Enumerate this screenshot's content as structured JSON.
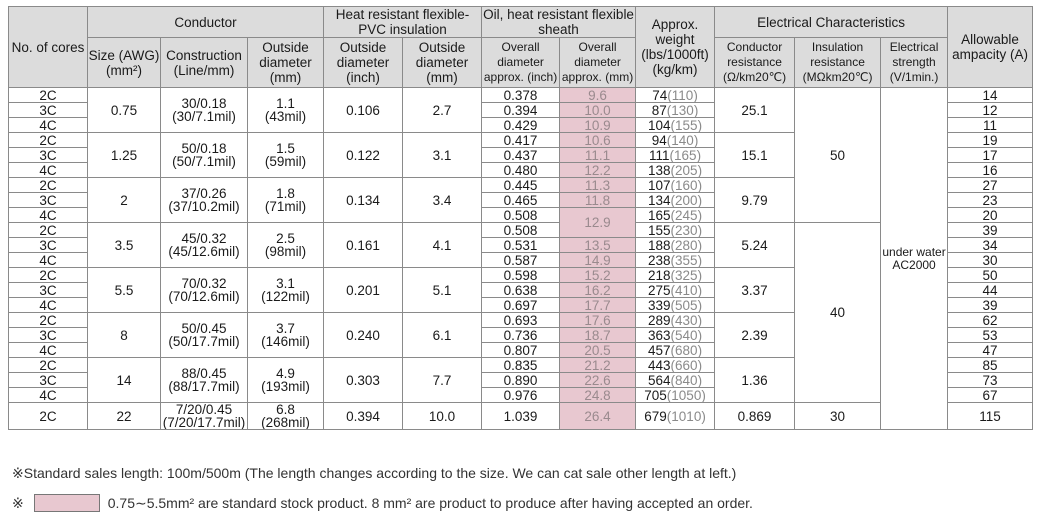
{
  "headers": {
    "cores": "No. of cores",
    "conductor": "Conductor",
    "size": "Size (AWG) (mm²)",
    "construction": "Construction (Line/mm)",
    "outside_diameter": "Outside diameter (mm)",
    "insulation": "Heat resistant flexible-PVC insulation",
    "ins_od_inch": "Outside diameter (inch)",
    "ins_od_mm": "Outside diameter (mm)",
    "sheath": "Oil, heat resistant flexible sheath",
    "sheath_od_inch": "Overall diameter approx. (inch)",
    "sheath_od_mm": "Overall diameter approx. (mm)",
    "weight": "Approx. weight (lbs/1000ft) (kg/km)",
    "electrical": "Electrical Characteristics",
    "cond_res": "Conductor resistance (Ω/km20℃)",
    "ins_res": "Insulation resistance (MΩkm20℃)",
    "elec_strength": "Electrical strength (V/1min.)",
    "ampacity": "Allowable ampacity (A)"
  },
  "groups": [
    {
      "size": "0.75",
      "construction": [
        "30/0.18",
        "(30/7.1mil)"
      ],
      "od": [
        "1.1",
        "(43mil)"
      ],
      "ins_inch": "0.106",
      "ins_mm": "2.7",
      "cond_res": "25.1",
      "rows": [
        {
          "cores": "2C",
          "od_inch": "0.378",
          "od_mm": "9.6",
          "w_lbs": "74",
          "w_kg": "(110)",
          "amp": "14"
        },
        {
          "cores": "3C",
          "od_inch": "0.394",
          "od_mm": "10.0",
          "w_lbs": "87",
          "w_kg": "(130)",
          "amp": "12"
        },
        {
          "cores": "4C",
          "od_inch": "0.429",
          "od_mm": "10.9",
          "w_lbs": "104",
          "w_kg": "(155)",
          "amp": "11"
        }
      ]
    },
    {
      "size": "1.25",
      "construction": [
        "50/0.18",
        "(50/7.1mil)"
      ],
      "od": [
        "1.5",
        "(59mil)"
      ],
      "ins_inch": "0.122",
      "ins_mm": "3.1",
      "cond_res": "15.1",
      "rows": [
        {
          "cores": "2C",
          "od_inch": "0.417",
          "od_mm": "10.6",
          "w_lbs": "94",
          "w_kg": "(140)",
          "amp": "19"
        },
        {
          "cores": "3C",
          "od_inch": "0.437",
          "od_mm": "11.1",
          "w_lbs": "111",
          "w_kg": "(165)",
          "amp": "17"
        },
        {
          "cores": "4C",
          "od_inch": "0.480",
          "od_mm": "12.2",
          "w_lbs": "138",
          "w_kg": "(205)",
          "amp": "16"
        }
      ]
    },
    {
      "size": "2",
      "construction": [
        "37/0.26",
        "(37/10.2mil)"
      ],
      "od": [
        "1.8",
        "(71mil)"
      ],
      "ins_inch": "0.134",
      "ins_mm": "3.4",
      "cond_res": "9.79",
      "rows": [
        {
          "cores": "2C",
          "od_inch": "0.445",
          "od_mm": "11.3",
          "w_lbs": "107",
          "w_kg": "(160)",
          "amp": "27"
        },
        {
          "cores": "3C",
          "od_inch": "0.465",
          "od_mm": "11.8",
          "w_lbs": "134",
          "w_kg": "(200)",
          "amp": "23"
        },
        {
          "cores": "4C",
          "od_inch": "0.508",
          "od_mm": "12.9",
          "w_lbs": "165",
          "w_kg": "(245)",
          "amp": "20"
        }
      ]
    },
    {
      "size": "3.5",
      "construction": [
        "45/0.32",
        "(45/12.6mil)"
      ],
      "od": [
        "2.5",
        "(98mil)"
      ],
      "ins_inch": "0.161",
      "ins_mm": "4.1",
      "cond_res": "5.24",
      "rows": [
        {
          "cores": "2C",
          "od_inch": "0.508",
          "od_mm": "12.9",
          "w_lbs": "155",
          "w_kg": "(230)",
          "amp": "39"
        },
        {
          "cores": "3C",
          "od_inch": "0.531",
          "od_mm": "13.5",
          "w_lbs": "188",
          "w_kg": "(280)",
          "amp": "34"
        },
        {
          "cores": "4C",
          "od_inch": "0.587",
          "od_mm": "14.9",
          "w_lbs": "238",
          "w_kg": "(355)",
          "amp": "30"
        }
      ]
    },
    {
      "size": "5.5",
      "construction": [
        "70/0.32",
        "(70/12.6mil)"
      ],
      "od": [
        "3.1",
        "(122mil)"
      ],
      "ins_inch": "0.201",
      "ins_mm": "5.1",
      "cond_res": "3.37",
      "rows": [
        {
          "cores": "2C",
          "od_inch": "0.598",
          "od_mm": "15.2",
          "w_lbs": "218",
          "w_kg": "(325)",
          "amp": "50"
        },
        {
          "cores": "3C",
          "od_inch": "0.638",
          "od_mm": "16.2",
          "w_lbs": "275",
          "w_kg": "(410)",
          "amp": "44"
        },
        {
          "cores": "4C",
          "od_inch": "0.697",
          "od_mm": "17.7",
          "w_lbs": "339",
          "w_kg": "(505)",
          "amp": "39"
        }
      ]
    },
    {
      "size": "8",
      "construction": [
        "50/0.45",
        "(50/17.7mil)"
      ],
      "od": [
        "3.7",
        "(146mil)"
      ],
      "ins_inch": "0.240",
      "ins_mm": "6.1",
      "cond_res": "2.39",
      "rows": [
        {
          "cores": "2C",
          "od_inch": "0.693",
          "od_mm": "17.6",
          "w_lbs": "289",
          "w_kg": "(430)",
          "amp": "62"
        },
        {
          "cores": "3C",
          "od_inch": "0.736",
          "od_mm": "18.7",
          "w_lbs": "363",
          "w_kg": "(540)",
          "amp": "53"
        },
        {
          "cores": "4C",
          "od_inch": "0.807",
          "od_mm": "20.5",
          "w_lbs": "457",
          "w_kg": "(680)",
          "amp": "47"
        }
      ]
    },
    {
      "size": "14",
      "construction": [
        "88/0.45",
        "(88/17.7mil)"
      ],
      "od": [
        "4.9",
        "(193mil)"
      ],
      "ins_inch": "0.303",
      "ins_mm": "7.7",
      "cond_res": "1.36",
      "rows": [
        {
          "cores": "2C",
          "od_inch": "0.835",
          "od_mm": "21.2",
          "w_lbs": "443",
          "w_kg": "(660)",
          "amp": "85"
        },
        {
          "cores": "3C",
          "od_inch": "0.890",
          "od_mm": "22.6",
          "w_lbs": "564",
          "w_kg": "(840)",
          "amp": "73"
        },
        {
          "cores": "4C",
          "od_inch": "0.976",
          "od_mm": "24.8",
          "w_lbs": "705",
          "w_kg": "(1050)",
          "amp": "67"
        }
      ]
    },
    {
      "size": "22",
      "construction": [
        "7/20/0.45",
        "(7/20/17.7mil)"
      ],
      "od": [
        "6.8",
        "(268mil)"
      ],
      "ins_inch": "0.394",
      "ins_mm": "10.0",
      "cond_res": "0.869",
      "ins_res": "30",
      "rows": [
        {
          "cores": "2C",
          "od_inch": "1.039",
          "od_mm": "26.4",
          "w_lbs": "679",
          "w_kg": "(1010)",
          "amp": "115"
        }
      ]
    }
  ],
  "ins_res_values": [
    "50",
    "40"
  ],
  "elec_strength": [
    "under water",
    "AC2000"
  ],
  "notes": {
    "sales_length": "※Standard sales length: 100m/500m (The length changes according to the size. We can cat sale other length at left.)",
    "stock_mark": "※",
    "stock_text": "0.75∼5.5mm² are standard stock product. 8 mm² are product to produce after having accepted an order."
  },
  "colors": {
    "stock_highlight": "#e8c8d0",
    "header_bg": "#dcdcdc",
    "border": "#8a8a8a"
  }
}
